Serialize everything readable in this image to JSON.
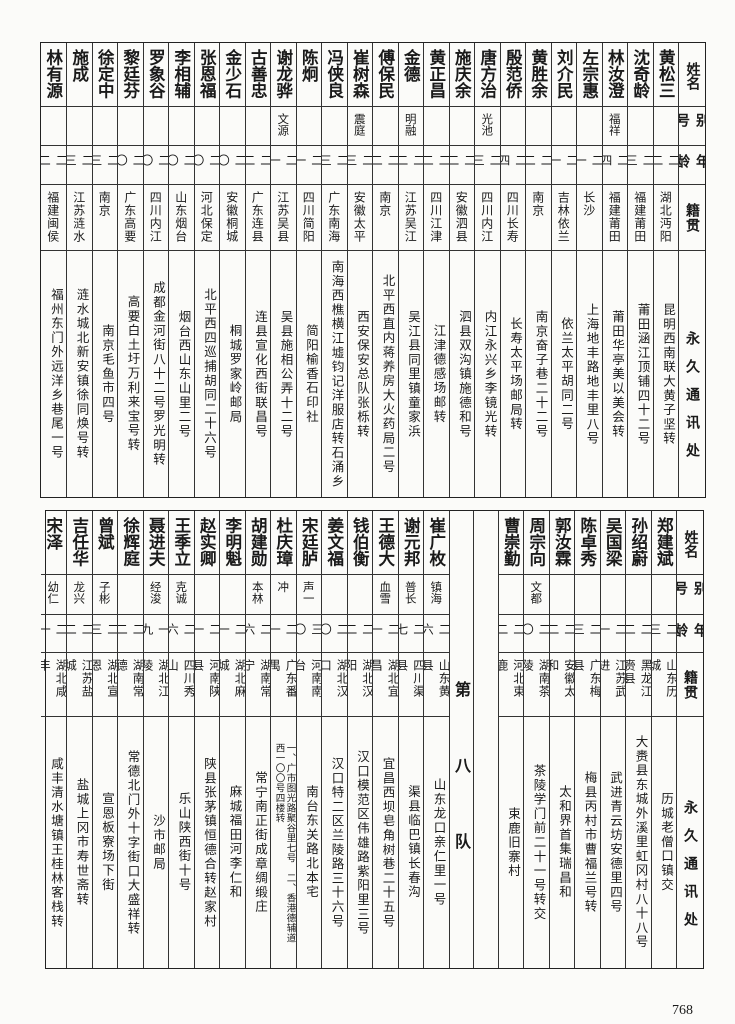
{
  "headers": {
    "name": "姓名",
    "alias": "别号",
    "age": "年龄",
    "native": "籍贯",
    "address": "永久通讯处"
  },
  "top_table": {
    "rows": [
      {
        "name": "黄松三",
        "alias": "",
        "age": "二二",
        "native": "湖北沔阳",
        "address": "昆明西南联大黄子坚转"
      },
      {
        "name": "沈奇龄",
        "alias": "",
        "age": "二三",
        "native": "福建莆田",
        "address": "莆田涵江顶铺四十二号"
      },
      {
        "name": "林汝澄",
        "alias": "福祥",
        "age": "二四",
        "native": "福建莆田",
        "address": "莆田华亭美以美会转"
      },
      {
        "name": "左宗惠",
        "alias": "",
        "age": "二一",
        "native": "长沙",
        "address": "上海地丰路地丰里八号"
      },
      {
        "name": "刘介民",
        "alias": "",
        "age": "二一",
        "native": "吉林依兰",
        "address": "依兰太平胡同二号"
      },
      {
        "name": "黄胜余",
        "alias": "",
        "age": "二二",
        "native": "南京",
        "address": "南京奋子巷二十二号"
      },
      {
        "name": "殷范侨",
        "alias": "",
        "age": "二四",
        "native": "四川长寿",
        "address": "长寿太平场邮局转"
      },
      {
        "name": "唐方治",
        "alias": "光池",
        "age": "二三",
        "native": "四川内江",
        "address": "内江永兴乡李镜光转"
      },
      {
        "name": "施庆余",
        "alias": "",
        "age": "二二",
        "native": "安徽泗县",
        "address": "泗县双沟镇施德和号"
      },
      {
        "name": "黄正昌",
        "alias": "",
        "age": "二二",
        "native": "四川江津",
        "address": "江津德感场邮转"
      },
      {
        "name": "金德",
        "alias": "明融",
        "age": "二二",
        "native": "江苏吴江",
        "address": "吴江县同里镇童家浜"
      },
      {
        "name": "傅保民",
        "alias": "",
        "age": "二二",
        "native": "南京",
        "address": "北平西直内蒋养房大火药局二号"
      },
      {
        "name": "崔树森",
        "alias": "震庭",
        "age": "二三",
        "native": "安徽太平",
        "address": "西安保安总队张栎转"
      },
      {
        "name": "冯侠良",
        "alias": "",
        "age": "二三",
        "native": "广东南海",
        "address": "南海西樵横江墟钧记洋服店转石涌乡"
      },
      {
        "name": "陈炯",
        "alias": "",
        "age": "二一",
        "native": "四川简阳",
        "address": "简阳榆香石印社"
      },
      {
        "name": "谢龙骅",
        "alias": "文源",
        "age": "二一",
        "native": "江苏吴县",
        "address": "吴县施相公弄十二号"
      },
      {
        "name": "古善忠",
        "alias": "",
        "age": "二二",
        "native": "广东连县",
        "address": "连县宣化西街联昌号"
      },
      {
        "name": "金少石",
        "alias": "",
        "age": "二〇",
        "native": "安徽桐城",
        "address": "桐城罗家岭邮局"
      },
      {
        "name": "张恩福",
        "alias": "",
        "age": "二〇",
        "native": "河北保定",
        "address": "北平西四巡捕胡同二十六号"
      },
      {
        "name": "李相辅",
        "alias": "",
        "age": "二〇",
        "native": "山东烟台",
        "address": "烟台西山东山里二号"
      },
      {
        "name": "罗象谷",
        "alias": "",
        "age": "二〇",
        "native": "四川内江",
        "address": "成都金河街八十二号罗光明转"
      },
      {
        "name": "黎廷芬",
        "alias": "",
        "age": "二〇",
        "native": "广东高要",
        "address": "高要白土圩万利来宝号转"
      },
      {
        "name": "徐定中",
        "alias": "",
        "age": "二三",
        "native": "南京",
        "address": "南京毛鱼市四号"
      },
      {
        "name": "施成",
        "alias": "",
        "age": "二三",
        "native": "江苏涟水",
        "address": "涟水城北新安镇徐同焕号转"
      },
      {
        "name": "林有源",
        "alias": "",
        "age": "二二",
        "native": "福建闽侯",
        "address": "福州东门外远洋乡巷尾一号"
      }
    ]
  },
  "bottom_table": {
    "section_label": "第八队",
    "rows_before_section": [
      {
        "name": "郑建斌",
        "alias": "",
        "age": "二三",
        "native": "山东历城",
        "address": "历城老僧口镇交"
      },
      {
        "name": "孙绍蔚",
        "alias": "",
        "age": "二二",
        "native": "黑龙江赍县",
        "address": "大赉县东城外溪里虹冈村八十八号"
      },
      {
        "name": "吴国梁",
        "alias": "",
        "age": "二一",
        "native": "江苏武进",
        "address": "武进青云坊安德里四号"
      },
      {
        "name": "陈卓秀",
        "alias": "",
        "age": "二三",
        "native": "广东梅县",
        "address": "梅县丙村市曹福兰号转"
      },
      {
        "name": "郭汝霖",
        "alias": "",
        "age": "二二",
        "native": "安徽太和",
        "address": "太和界首集瑞昌和"
      },
      {
        "name": "周宗向",
        "alias": "文都",
        "age": "二〇",
        "native": "湖南茶陵",
        "address": "茶陵学门前二十一号转交"
      },
      {
        "name": "曹崇勤",
        "alias": "",
        "age": "二二",
        "native": "河北束鹿",
        "address": "束鹿旧寨村"
      }
    ],
    "rows_after_section": [
      {
        "name": "崔广枚",
        "alias": "镇海",
        "age": "二六",
        "native": "山东黄县",
        "address": "山东龙口亲仁里一号"
      },
      {
        "name": "谢元邦",
        "alias": "普长",
        "age": "二七",
        "native": "四川渠县",
        "address": "渠县临巴镇长春沟"
      },
      {
        "name": "王德大",
        "alias": "血雪",
        "age": "二一",
        "native": "湖北宜昌",
        "address": "宜昌西坝皂角树巷二十五号"
      },
      {
        "name": "钱伯衡",
        "alias": "",
        "age": "二二",
        "native": "湖北汉阳",
        "address": "汉口模范区伟雄路紫阳里三号"
      },
      {
        "name": "姜文福",
        "alias": "",
        "age": "二〇",
        "native": "湖北汉口",
        "address": "汉口特二区兰陵路三十六号"
      },
      {
        "name": "宋廷胪",
        "alias": "声一",
        "age": "三〇",
        "native": "河南南台",
        "address": "南台东关路北本宅"
      },
      {
        "name": "杜庆璋",
        "alias": "冲",
        "age": "二一",
        "native": "广东番禺",
        "address": "一、广市图光路聚谷里七号　二、香港德辅道\n西一〇〇号四楼转"
      },
      {
        "name": "胡建勋",
        "alias": "本林",
        "age": "二六",
        "native": "湖南常宁",
        "address": "常宁南正街成章绸缎庄"
      },
      {
        "name": "李明魁",
        "alias": "",
        "age": "二一",
        "native": "湖北麻城",
        "address": "麻城福田河李仁和"
      },
      {
        "name": "赵实卿",
        "alias": "",
        "age": "二一",
        "native": "河南陕县",
        "address": "陕县张茅镇恒德合转赵家村"
      },
      {
        "name": "王季立",
        "alias": "克诚",
        "age": "二六",
        "native": "四川秀山",
        "address": "乐山陕西街十号"
      },
      {
        "name": "聂进夫",
        "alias": "经浚",
        "age": "一九",
        "native": "湖北江陵",
        "address": "沙市邮局"
      },
      {
        "name": "徐辉庭",
        "alias": "",
        "age": "二二",
        "native": "湖南常德",
        "address": "常德北门外十字街口大盛祥转"
      },
      {
        "name": "曾斌",
        "alias": "子彬",
        "age": "二三",
        "native": "湖北宣恩",
        "address": "宣恩板寮场下街"
      },
      {
        "name": "吉任华",
        "alias": "龙兴",
        "age": "二二",
        "native": "江苏盐城",
        "address": "盐城上冈市寿世斋转"
      },
      {
        "name": "宋泽",
        "alias": "幼仁",
        "age": "二一",
        "native": "湖北咸丰",
        "address": "咸丰清水塘镇王桂林客栈转"
      }
    ]
  },
  "page_number": "768"
}
